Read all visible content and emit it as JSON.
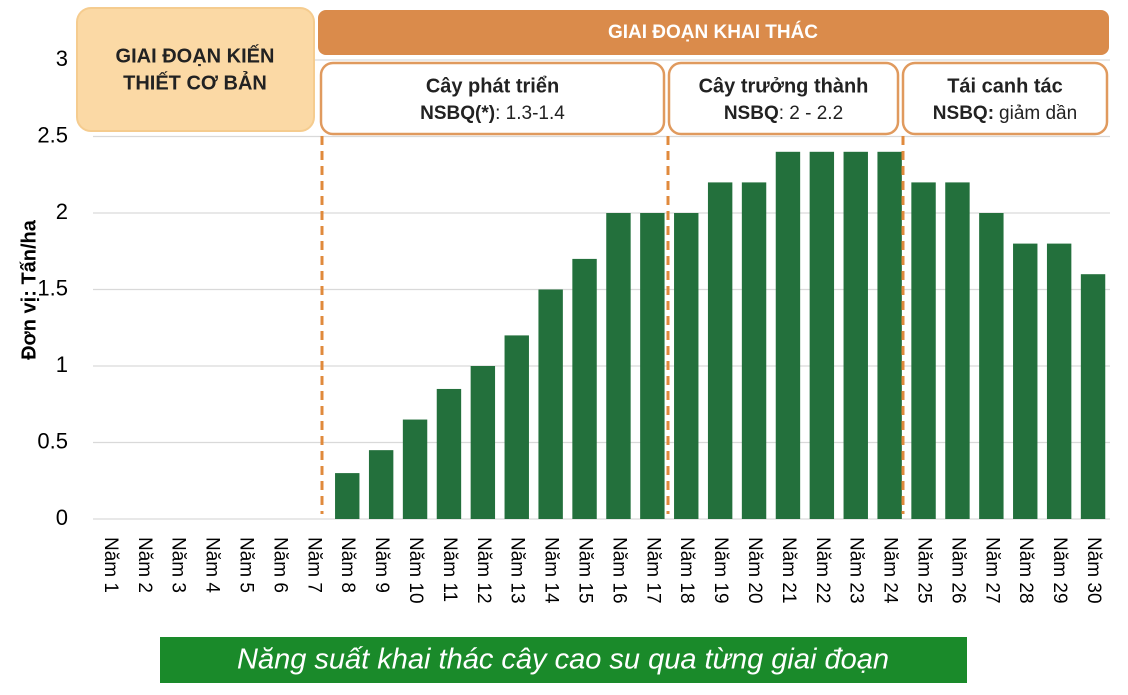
{
  "chart_data": {
    "type": "bar",
    "y_label": "Đơn vị: Tấn/ha",
    "categories": [
      "Năm 1",
      "Năm 2",
      "Năm 3",
      "Năm 4",
      "Năm 5",
      "Năm 6",
      "Năm 7",
      "Năm 8",
      "Năm 9",
      "Năm 10",
      "Năm 11",
      "Năm 12",
      "Năm 13",
      "Năm 14",
      "Năm 15",
      "Năm 16",
      "Năm 17",
      "Năm 18",
      "Năm 19",
      "Năm 20",
      "Năm 21",
      "Năm 22",
      "Năm 23",
      "Năm 24",
      "Năm 25",
      "Năm 26",
      "Năm 27",
      "Năm 28",
      "Năm 29",
      "Năm 30"
    ],
    "values": [
      0,
      0,
      0,
      0,
      0,
      0,
      0,
      0.3,
      0.45,
      0.65,
      0.85,
      1.0,
      1.2,
      1.5,
      1.7,
      2.0,
      2.0,
      2.0,
      2.2,
      2.2,
      2.4,
      2.4,
      2.4,
      2.4,
      2.2,
      2.2,
      2.0,
      1.8,
      1.8,
      1.6
    ],
    "color": "#23703c",
    "ylim": [
      0,
      3
    ],
    "yticks": [
      0,
      0.5,
      1,
      1.5,
      2,
      2.5,
      3
    ],
    "grid": true,
    "construction_phase": [
      "GIAI ĐOẠN KIẾN",
      "THIẾT CƠ BẢN"
    ],
    "exploitation_phase": "GIAI ĐOẠN KHAI THÁC",
    "sub_phases": [
      {
        "title": "Cây phát triển",
        "label": "NSBQ(*)",
        "text": ": 1.3-1.4"
      },
      {
        "title": "Cây trưởng thành",
        "label": "NSBQ",
        "text": ": 2 - 2.2"
      },
      {
        "title": "Tái canh tác",
        "label": "NSBQ:",
        "text": "giảm dần"
      }
    ],
    "caption": "Năng suất khai thác cây cao su qua từng giai đoạn"
  }
}
